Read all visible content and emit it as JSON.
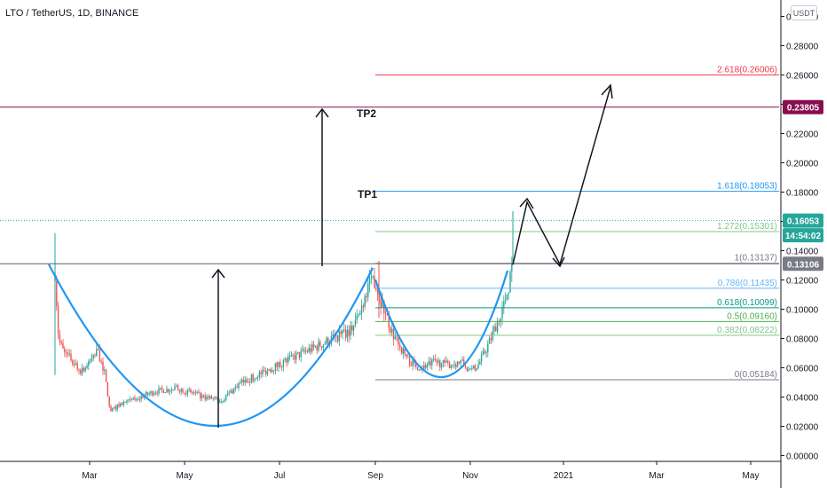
{
  "header": {
    "title": "LTO / TetherUS, 1D, BINANCE",
    "currency": "USDT"
  },
  "chart_data": {
    "type": "candlestick",
    "symbol": "LTO / TetherUS",
    "interval": "1D",
    "exchange": "BINANCE",
    "currency": "USDT",
    "ylim": [
      0.0,
      0.3
    ],
    "y_ticks": [
      "0.30000",
      "0.28000",
      "0.26000",
      "0.24000",
      "0.22000",
      "0.20000",
      "0.18000",
      "0.16000",
      "0.14000",
      "0.12000",
      "0.10000",
      "0.08000",
      "0.06000",
      "0.04000",
      "0.02000",
      "0.00000"
    ],
    "x_ticks": [
      "Mar",
      "May",
      "Jul",
      "Sep",
      "Nov",
      "2021",
      "Mar",
      "May"
    ],
    "price_badges": [
      {
        "label": "0.23805",
        "value": 0.23805,
        "color": "#880e4f"
      },
      {
        "label": "0.16053",
        "value": 0.16053,
        "color": "#26a69a"
      },
      {
        "label": "14:54:02",
        "value": 0.1505,
        "color": "#26a69a"
      },
      {
        "label": "0.13106",
        "value": 0.13106,
        "color": "#787b86"
      }
    ],
    "fibonacci": [
      {
        "label": "2.618(0.26006)",
        "ratio": 2.618,
        "price": 0.26006,
        "color": "#f23645"
      },
      {
        "label": "1.618(0.18053)",
        "ratio": 1.618,
        "price": 0.18053,
        "color": "#2196f3"
      },
      {
        "label": "1.272(0.15301)",
        "ratio": 1.272,
        "price": 0.15301,
        "color": "#81c784"
      },
      {
        "label": "1(0.13137)",
        "ratio": 1,
        "price": 0.13137,
        "color": "#787b86"
      },
      {
        "label": "0.786(0.11435)",
        "ratio": 0.786,
        "price": 0.11435,
        "color": "#64b5f6"
      },
      {
        "label": "0.618(0.10099)",
        "ratio": 0.618,
        "price": 0.10099,
        "color": "#089981"
      },
      {
        "label": "0.5(0.09160)",
        "ratio": 0.5,
        "price": 0.0916,
        "color": "#4caf50"
      },
      {
        "label": "0.382(0.08222)",
        "ratio": 0.382,
        "price": 0.08222,
        "color": "#81c784"
      },
      {
        "label": "0(0.05184)",
        "ratio": 0,
        "price": 0.05184,
        "color": "#787b86"
      }
    ],
    "annotations": [
      "TP2",
      "TP1"
    ],
    "key_levels": {
      "tp2": 0.23805,
      "neckline": 0.13106,
      "last_price": 0.16053
    }
  }
}
